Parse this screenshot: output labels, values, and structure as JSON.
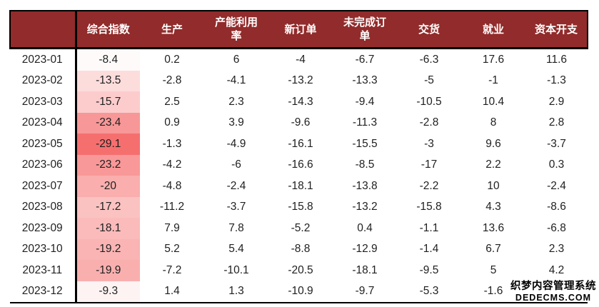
{
  "colors": {
    "header_bg": "#922B2B",
    "header_text": "#FFFFFF",
    "border": "#000000",
    "body_text": "#1F1F1F",
    "heat_scale_min_color": "#F66F6F",
    "heat_scale_max_color": "#FFFFFF"
  },
  "watermark": {
    "line1": "织梦内容管理系统",
    "line2": "DEDECMS.COM"
  },
  "chart_data": {
    "type": "table",
    "title": "",
    "corner_label": "",
    "columns": [
      "综合指数",
      "生产",
      "产能利用率",
      "新订单",
      "未完成订单",
      "交货",
      "就业",
      "资本开支"
    ],
    "heatmap_column": "综合指数",
    "heatmap_range": [
      -29.1,
      -8.4
    ],
    "rows": [
      {
        "date": "2023-01",
        "heat": "#FEFAFA",
        "cells": [
          "-8.4",
          "0.2",
          "6",
          "-4",
          "-6.7",
          "-6.3",
          "17.6",
          "11.6"
        ]
      },
      {
        "date": "2023-02",
        "heat": "#FDDCDC",
        "cells": [
          "-13.5",
          "-2.8",
          "-4.1",
          "-13.2",
          "-13.3",
          "-5",
          "-1",
          "-1.3"
        ]
      },
      {
        "date": "2023-03",
        "heat": "#FCCCCC",
        "cells": [
          "-15.7",
          "2.5",
          "2.3",
          "-14.3",
          "-9.4",
          "-10.5",
          "10.4",
          "2.9"
        ]
      },
      {
        "date": "2023-04",
        "heat": "#F89797",
        "cells": [
          "-23.4",
          "0.9",
          "3.9",
          "-9.6",
          "-11.3",
          "-2.8",
          "8",
          "2.8"
        ]
      },
      {
        "date": "2023-05",
        "heat": "#F66F6F",
        "cells": [
          "-29.1",
          "-1.3",
          "-4.9",
          "-16.1",
          "-15.5",
          "-3",
          "9.6",
          "-3.7"
        ]
      },
      {
        "date": "2023-06",
        "heat": "#F99898",
        "cells": [
          "-23.2",
          "-4.2",
          "-6",
          "-16.6",
          "-8.5",
          "-17",
          "2.2",
          "0.3"
        ]
      },
      {
        "date": "2023-07",
        "heat": "#FAAEAE",
        "cells": [
          "-20",
          "-4.8",
          "-2.4",
          "-18.1",
          "-13.8",
          "-2.2",
          "10",
          "-2.4"
        ]
      },
      {
        "date": "2023-08",
        "heat": "#FBC2C2",
        "cells": [
          "-17.2",
          "-11.2",
          "-3.7",
          "-15.8",
          "-13.2",
          "-15.8",
          "4.3",
          "-8.6"
        ]
      },
      {
        "date": "2023-09",
        "heat": "#FBBBBB",
        "cells": [
          "-18.1",
          "7.9",
          "7.8",
          "-5.2",
          "0.4",
          "-1.1",
          "13.6",
          "-6.8"
        ]
      },
      {
        "date": "2023-10",
        "heat": "#FAB4B4",
        "cells": [
          "-19.2",
          "5.2",
          "5.4",
          "-8.8",
          "-12.9",
          "-1.4",
          "6.7",
          "2.3"
        ]
      },
      {
        "date": "2023-11",
        "heat": "#FAAFAF",
        "cells": [
          "-19.9",
          "-7.2",
          "-10.1",
          "-20.5",
          "-18.1",
          "-9.5",
          "5",
          "4.2"
        ]
      },
      {
        "date": "2023-12",
        "heat": "#FEF3F3",
        "cells": [
          "-9.3",
          "1.4",
          "1.3",
          "-10.9",
          "-9.7",
          "-5.3",
          "-1.6",
          ""
        ]
      }
    ]
  }
}
